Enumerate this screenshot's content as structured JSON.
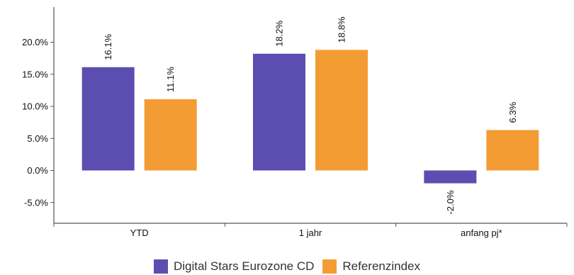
{
  "chart_data": {
    "type": "bar",
    "categories": [
      "YTD",
      "1 jahr",
      "anfang pj*"
    ],
    "series": [
      {
        "name": "Digital Stars Eurozone  CD",
        "values": [
          16.1,
          18.2,
          -2.0
        ],
        "labels": [
          "16.1%",
          "18.2%",
          "-2.0%"
        ],
        "color": "#5b4eb0"
      },
      {
        "name": "Referenzindex",
        "values": [
          11.1,
          18.8,
          6.3
        ],
        "labels": [
          "11.1%",
          "18.8%",
          "6.3%"
        ],
        "color": "#f39c34"
      }
    ],
    "yticks": [
      -5,
      0,
      5,
      10,
      15,
      20
    ],
    "ytick_labels": [
      "-5.0%",
      "0.0%",
      "5.0%",
      "10.0%",
      "15.0%",
      "20.0%"
    ],
    "ylim": [
      -8.4,
      25
    ],
    "grid": false,
    "legend_position": "bottom"
  }
}
